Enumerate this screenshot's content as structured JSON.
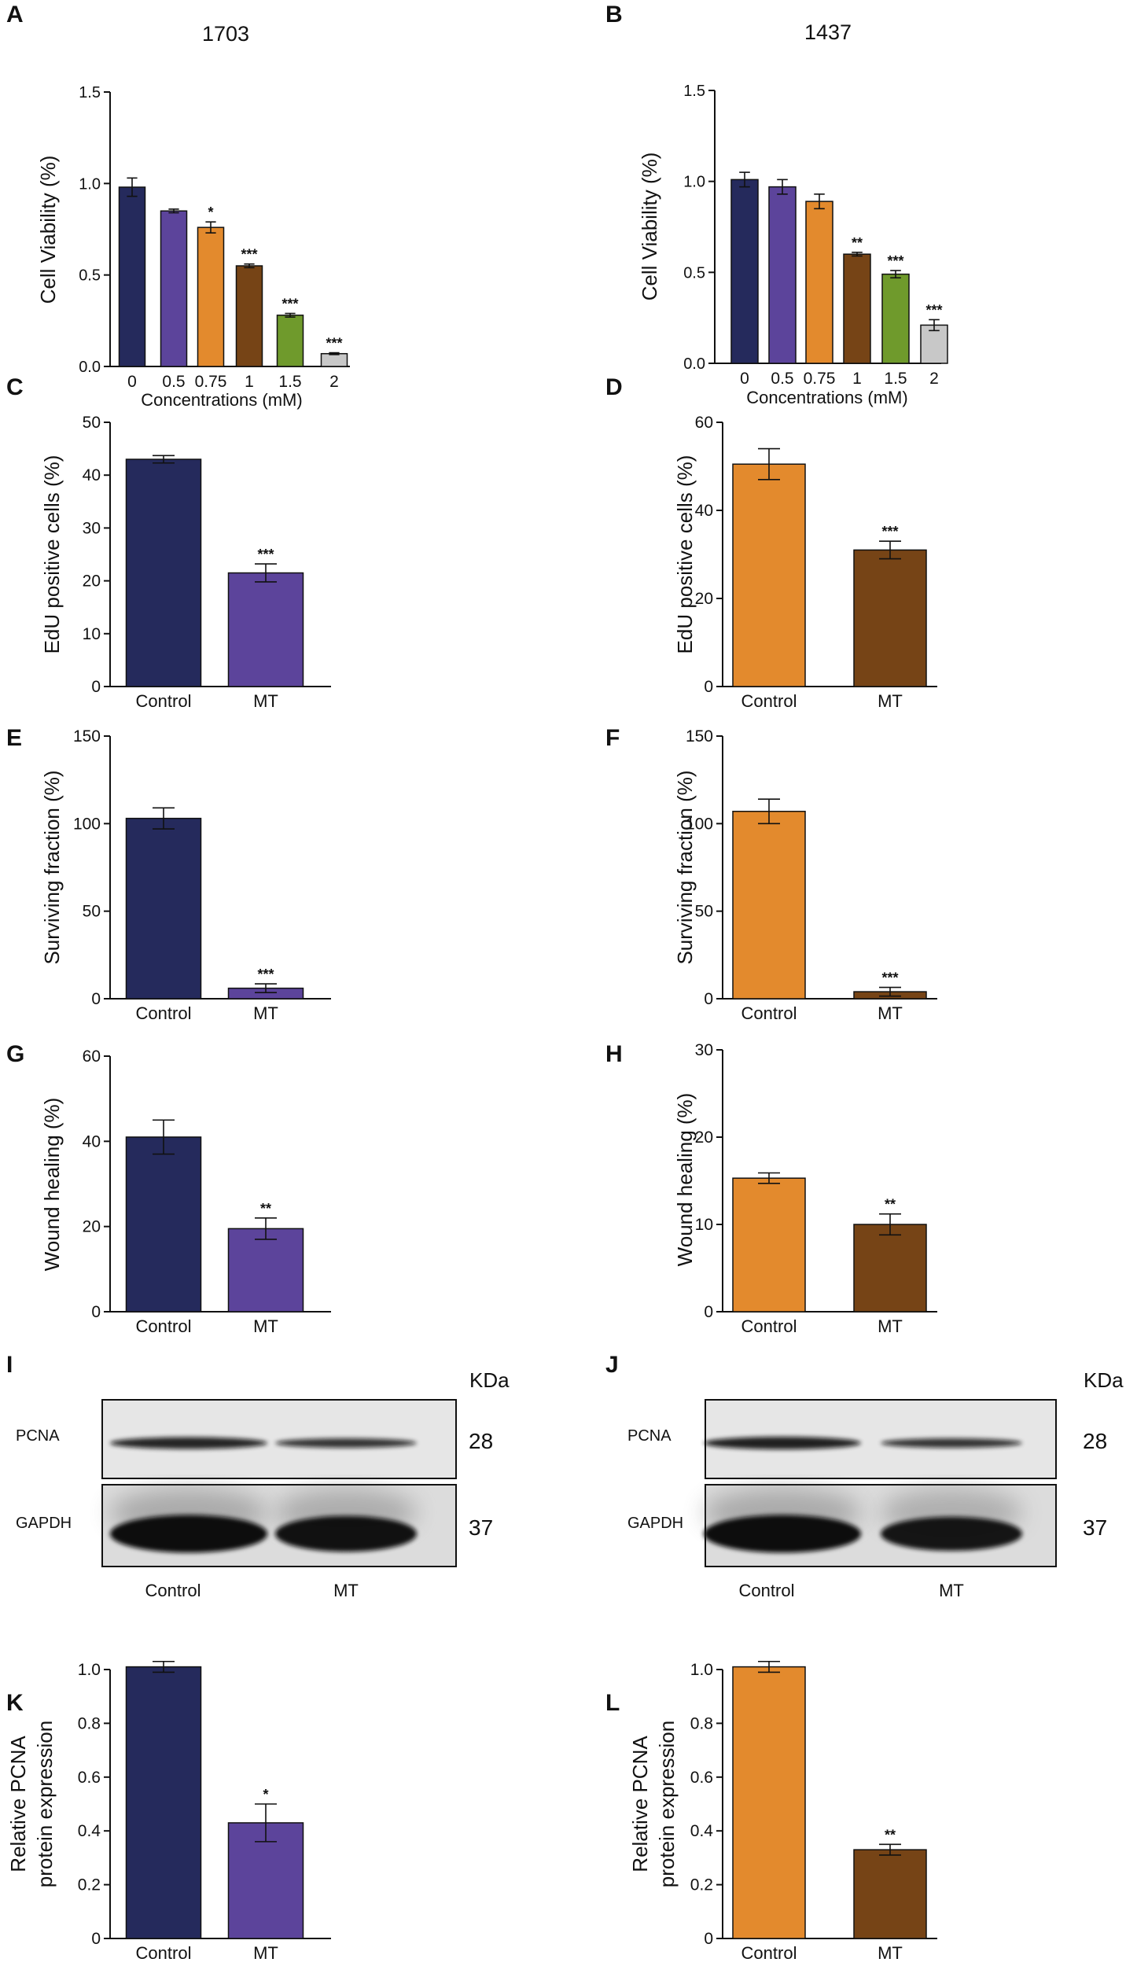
{
  "colors": {
    "navy": "#252a5c",
    "purple": "#5c449b",
    "orange": "#e38a2d",
    "brown": "#764416",
    "green": "#6f9a2c",
    "gray": "#c8c8c8"
  },
  "chart_data": [
    {
      "panel": "A",
      "type": "bar",
      "title": "1703",
      "ylabel": "Cell Viability (%)",
      "xlabel": "Concentrations (mM)",
      "categories": [
        "0",
        "0.5",
        "0.75",
        "1",
        "1.5",
        "2"
      ],
      "values": [
        0.98,
        0.85,
        0.76,
        0.55,
        0.28,
        0.07
      ],
      "errors": [
        0.05,
        0.01,
        0.03,
        0.01,
        0.01,
        0.005
      ],
      "significance": [
        "",
        "",
        "*",
        "***",
        "***",
        "***"
      ],
      "colors": [
        "navy",
        "purple",
        "orange",
        "brown",
        "green",
        "gray"
      ],
      "ylim": [
        0,
        1.5
      ],
      "yticks": [
        "0.0",
        "0.5",
        "1.0",
        "1.5"
      ],
      "grid": false
    },
    {
      "panel": "B",
      "type": "bar",
      "title": "1437",
      "ylabel": "Cell Viability (%)",
      "xlabel": "Concentrations (mM)",
      "categories": [
        "0",
        "0.5",
        "0.75",
        "1",
        "1.5",
        "2"
      ],
      "values": [
        1.01,
        0.97,
        0.89,
        0.6,
        0.49,
        0.21
      ],
      "errors": [
        0.04,
        0.04,
        0.04,
        0.01,
        0.02,
        0.03
      ],
      "significance": [
        "",
        "",
        "",
        "**",
        "***",
        "***"
      ],
      "colors": [
        "navy",
        "purple",
        "orange",
        "brown",
        "green",
        "gray"
      ],
      "ylim": [
        0,
        1.5
      ],
      "yticks": [
        "0.0",
        "0.5",
        "1.0",
        "1.5"
      ],
      "grid": false
    },
    {
      "panel": "C",
      "type": "bar",
      "title": "",
      "ylabel": "EdU positive cells (%)",
      "xlabel": "",
      "categories": [
        "Control",
        "MT"
      ],
      "values": [
        43,
        21.5
      ],
      "errors": [
        0.7,
        1.7
      ],
      "significance": [
        "",
        "***"
      ],
      "colors": [
        "navy",
        "purple"
      ],
      "ylim": [
        0,
        50
      ],
      "yticks": [
        "0",
        "10",
        "20",
        "30",
        "40",
        "50"
      ],
      "grid": false
    },
    {
      "panel": "D",
      "type": "bar",
      "title": "",
      "ylabel": "EdU positive cells (%)",
      "xlabel": "",
      "categories": [
        "Control",
        "MT"
      ],
      "values": [
        50.5,
        31
      ],
      "errors": [
        3.5,
        2
      ],
      "significance": [
        "",
        "***"
      ],
      "colors": [
        "orange",
        "brown"
      ],
      "ylim": [
        0,
        60
      ],
      "yticks": [
        "0",
        "20",
        "40",
        "60"
      ],
      "grid": false
    },
    {
      "panel": "E",
      "type": "bar",
      "title": "",
      "ylabel": "Surviving fraction (%)",
      "xlabel": "",
      "categories": [
        "Control",
        "MT"
      ],
      "values": [
        103,
        6
      ],
      "errors": [
        6,
        2.5
      ],
      "significance": [
        "",
        "***"
      ],
      "colors": [
        "navy",
        "purple"
      ],
      "ylim": [
        0,
        150
      ],
      "yticks": [
        "0",
        "50",
        "100",
        "150"
      ],
      "grid": false
    },
    {
      "panel": "F",
      "type": "bar",
      "title": "",
      "ylabel": "Surviving fraction (%)",
      "xlabel": "",
      "categories": [
        "Control",
        "MT"
      ],
      "values": [
        107,
        4
      ],
      "errors": [
        7,
        2.5
      ],
      "significance": [
        "",
        "***"
      ],
      "colors": [
        "orange",
        "brown"
      ],
      "ylim": [
        0,
        150
      ],
      "yticks": [
        "0",
        "50",
        "100",
        "150"
      ],
      "grid": false
    },
    {
      "panel": "G",
      "type": "bar",
      "title": "",
      "ylabel": "Wound healing (%)",
      "xlabel": "",
      "categories": [
        "Control",
        "MT"
      ],
      "values": [
        41,
        19.5
      ],
      "errors": [
        4,
        2.5
      ],
      "significance": [
        "",
        "**"
      ],
      "colors": [
        "navy",
        "purple"
      ],
      "ylim": [
        0,
        60
      ],
      "yticks": [
        "0",
        "20",
        "40",
        "60"
      ],
      "grid": false
    },
    {
      "panel": "H",
      "type": "bar",
      "title": "",
      "ylabel": "Wound healing (%)",
      "xlabel": "",
      "categories": [
        "Control",
        "MT"
      ],
      "values": [
        15.3,
        10
      ],
      "errors": [
        0.6,
        1.2
      ],
      "significance": [
        "",
        "**"
      ],
      "colors": [
        "orange",
        "brown"
      ],
      "ylim": [
        0,
        30
      ],
      "yticks": [
        "0",
        "10",
        "20",
        "30"
      ],
      "grid": false
    },
    {
      "panel": "K",
      "type": "bar",
      "title": "",
      "ylabel": [
        "Relative PCNA",
        "protein expression"
      ],
      "xlabel": "",
      "categories": [
        "Control",
        "MT"
      ],
      "values": [
        1.01,
        0.43
      ],
      "errors": [
        0.02,
        0.07
      ],
      "significance": [
        "",
        "*"
      ],
      "colors": [
        "navy",
        "purple"
      ],
      "ylim": [
        0,
        1.0
      ],
      "yticks": [
        "0",
        "0.2",
        "0.4",
        "0.6",
        "0.8",
        "1.0"
      ],
      "grid": false
    },
    {
      "panel": "L",
      "type": "bar",
      "title": "",
      "ylabel": [
        "Relative PCNA",
        "protein expression"
      ],
      "xlabel": "",
      "categories": [
        "Control",
        "MT"
      ],
      "values": [
        1.01,
        0.33
      ],
      "errors": [
        0.02,
        0.02
      ],
      "significance": [
        "",
        "**"
      ],
      "colors": [
        "orange",
        "brown"
      ],
      "ylim": [
        0,
        1.0
      ],
      "yticks": [
        "0",
        "0.2",
        "0.4",
        "0.6",
        "0.8",
        "1.0"
      ],
      "grid": false
    }
  ],
  "blots": [
    {
      "panel": "I",
      "unit_label": "KDa",
      "lanes": [
        "Control",
        "MT"
      ],
      "bands": [
        {
          "protein": "PCNA",
          "kda": "28",
          "intensity": [
            0.75,
            0.6
          ]
        },
        {
          "protein": "GAPDH",
          "kda": "37",
          "intensity": [
            1.0,
            0.95
          ]
        }
      ]
    },
    {
      "panel": "J",
      "unit_label": "KDa",
      "lanes": [
        "Control",
        "MT"
      ],
      "bands": [
        {
          "protein": "PCNA",
          "kda": "28",
          "intensity": [
            0.8,
            0.6
          ]
        },
        {
          "protein": "GAPDH",
          "kda": "37",
          "intensity": [
            1.0,
            0.9
          ]
        }
      ]
    }
  ]
}
